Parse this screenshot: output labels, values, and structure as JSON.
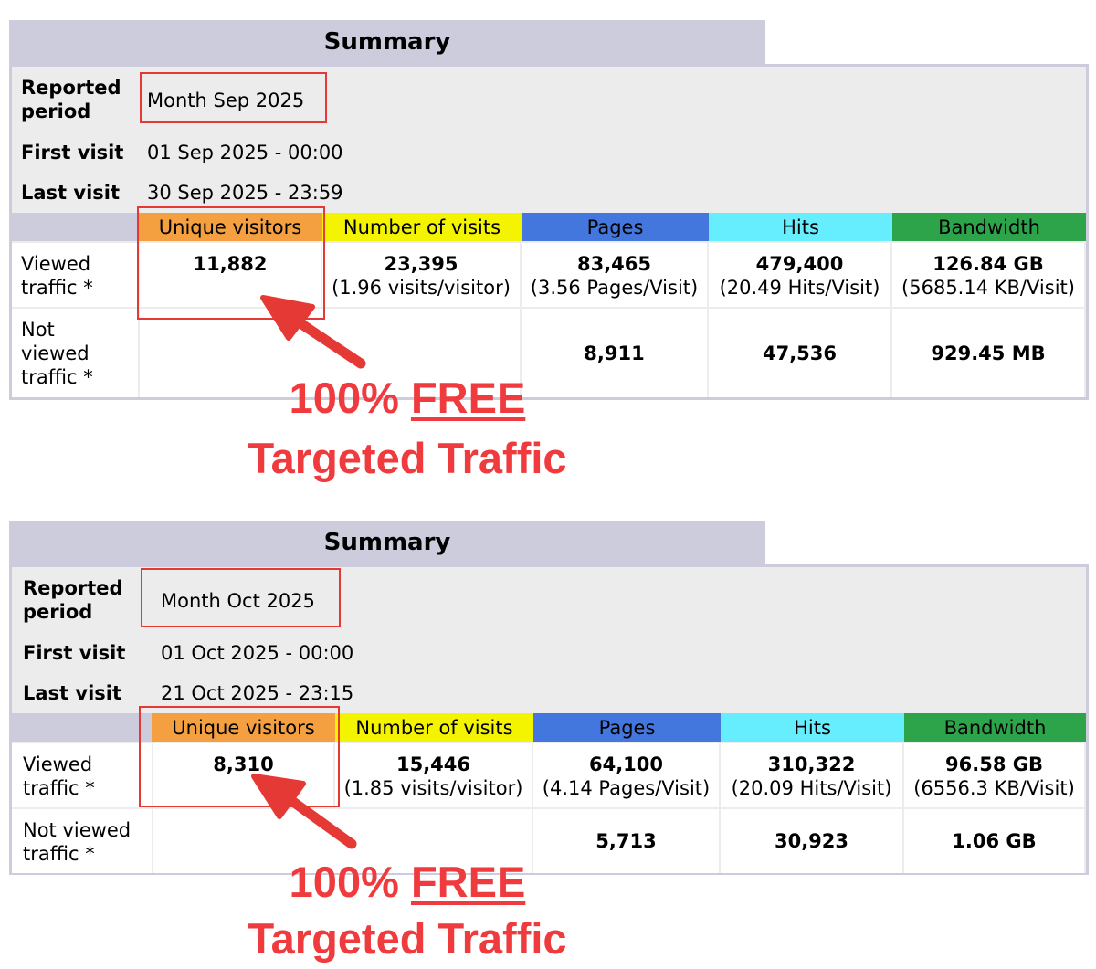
{
  "colors": {
    "title_bg": "#ccccdd",
    "panel_bg": "#ececec",
    "unique_visitors": "#f5a040",
    "number_of_visits": "#f4f400",
    "pages": "#4477dd",
    "hits": "#66eeff",
    "bandwidth": "#2ea44a",
    "highlight_red": "#e53935",
    "caption_red": "#ef3a3e"
  },
  "headers": {
    "unique_visitors": "Unique visitors",
    "number_of_visits": "Number of visits",
    "pages": "Pages",
    "hits": "Hits",
    "bandwidth": "Bandwidth"
  },
  "summaries": [
    {
      "title": "Summary",
      "reported_period_label": "Reported period",
      "reported_period_value": "Month Sep 2025",
      "first_visit_label": "First visit",
      "first_visit_value": "01 Sep 2025 - 00:00",
      "last_visit_label": "Last visit",
      "last_visit_value": "30 Sep 2025 - 23:59",
      "viewed_label": "Viewed traffic *",
      "not_viewed_label": "Not viewed traffic *",
      "viewed": {
        "unique_visitors": "11,882",
        "number_of_visits": "23,395",
        "visits_per_visitor": "(1.96 visits/visitor)",
        "pages": "83,465",
        "pages_per_visit": "(3.56 Pages/Visit)",
        "hits": "479,400",
        "hits_per_visit": "(20.49 Hits/Visit)",
        "bandwidth": "126.84 GB",
        "bandwidth_per_visit": "(5685.14 KB/Visit)"
      },
      "not_viewed": {
        "pages": "8,911",
        "hits": "47,536",
        "bandwidth": "929.45 MB"
      },
      "caption_line1_a": "100% ",
      "caption_line1_b": "FREE",
      "caption_line2": "Targeted Traffic"
    },
    {
      "title": "Summary",
      "reported_period_label": "Reported period",
      "reported_period_value": "Month Oct 2025",
      "first_visit_label": "First visit",
      "first_visit_value": "01 Oct 2025 - 00:00",
      "last_visit_label": "Last visit",
      "last_visit_value": "21 Oct 2025 - 23:15",
      "viewed_label": "Viewed traffic *",
      "not_viewed_label": "Not viewed traffic *",
      "viewed": {
        "unique_visitors": "8,310",
        "number_of_visits": "15,446",
        "visits_per_visitor": "(1.85 visits/visitor)",
        "pages": "64,100",
        "pages_per_visit": "(4.14 Pages/Visit)",
        "hits": "310,322",
        "hits_per_visit": "(20.09 Hits/Visit)",
        "bandwidth": "96.58 GB",
        "bandwidth_per_visit": "(6556.3 KB/Visit)"
      },
      "not_viewed": {
        "pages": "5,713",
        "hits": "30,923",
        "bandwidth": "1.06 GB"
      },
      "caption_line1_a": "100% ",
      "caption_line1_b": "FREE",
      "caption_line2": "Targeted Traffic"
    }
  ]
}
